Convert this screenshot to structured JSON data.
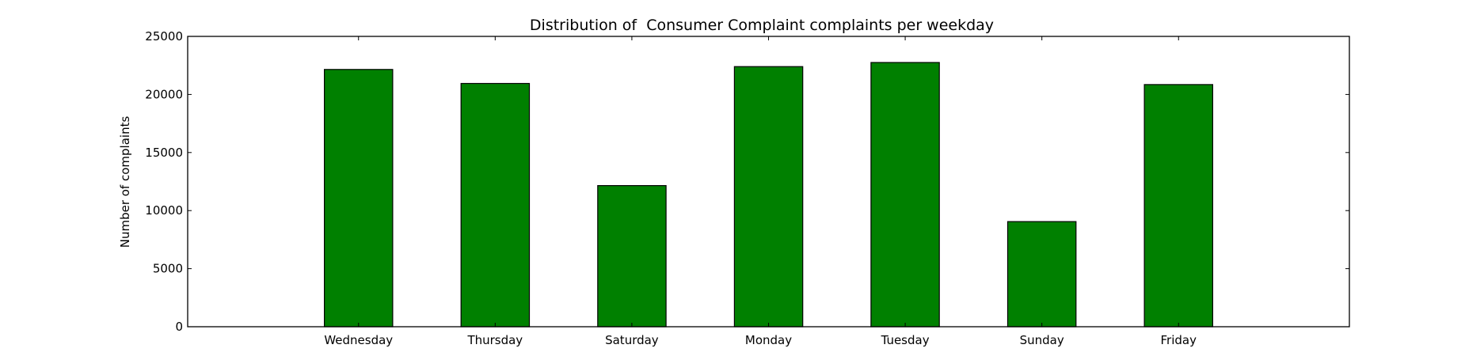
{
  "chart_data": {
    "type": "bar",
    "title": "Distribution of  Consumer Complaint complaints per weekday",
    "xlabel": "",
    "ylabel": "Number of complaints",
    "categories": [
      "Wednesday",
      "Thursday",
      "Saturday",
      "Monday",
      "Tuesday",
      "Sunday",
      "Friday"
    ],
    "values": [
      22150,
      20950,
      12150,
      22400,
      22750,
      9050,
      20850
    ],
    "ylim": [
      0,
      25000
    ],
    "yticks": [
      "0",
      "5000",
      "10000",
      "15000",
      "20000",
      "25000"
    ],
    "grid": false,
    "legend": "none",
    "colors": {
      "bar_fill": "#008000",
      "bar_edge": "#000000",
      "axes": "#000000",
      "background": "#ffffff"
    }
  }
}
